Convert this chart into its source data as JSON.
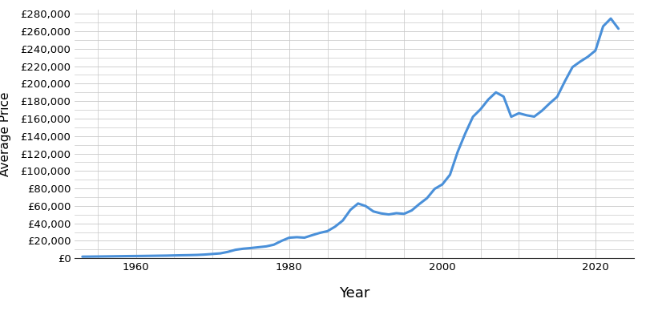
{
  "title": "",
  "xlabel": "Year",
  "ylabel": "Average Price",
  "line_color": "#4a90d9",
  "line_width": 2.2,
  "background_color": "#ffffff",
  "grid_color": "#c8c8c8",
  "ylim": [
    0,
    285000
  ],
  "ytick_step": 20000,
  "xlim_min": 1952,
  "xlim_max": 2025,
  "xticks": [
    1960,
    1980,
    2000,
    2020
  ],
  "years": [
    1953,
    1954,
    1955,
    1956,
    1957,
    1958,
    1959,
    1960,
    1961,
    1962,
    1963,
    1964,
    1965,
    1966,
    1967,
    1968,
    1969,
    1970,
    1971,
    1972,
    1973,
    1974,
    1975,
    1976,
    1977,
    1978,
    1979,
    1980,
    1981,
    1982,
    1983,
    1984,
    1985,
    1986,
    1987,
    1988,
    1989,
    1990,
    1991,
    1992,
    1993,
    1994,
    1995,
    1996,
    1997,
    1998,
    1999,
    2000,
    2001,
    2002,
    2003,
    2004,
    2005,
    2006,
    2007,
    2008,
    2009,
    2010,
    2011,
    2012,
    2013,
    2014,
    2015,
    2016,
    2017,
    2018,
    2019,
    2020,
    2021,
    2022,
    2023
  ],
  "prices": [
    1891,
    1970,
    2071,
    2184,
    2302,
    2420,
    2535,
    2609,
    2707,
    2839,
    2966,
    3090,
    3302,
    3497,
    3650,
    3880,
    4312,
    4975,
    5632,
    7374,
    9767,
    10990,
    11787,
    12704,
    13650,
    15594,
    19925,
    23596,
    24188,
    23644,
    26471,
    29106,
    31103,
    36276,
    43244,
    55491,
    62782,
    59785,
    53683,
    51437,
    50193,
    51671,
    50930,
    54797,
    62162,
    68858,
    79532,
    84620,
    95650,
    121769,
    143068,
    162080,
    170764,
    181828,
    190032,
    185240,
    162085,
    166159,
    163822,
    162262,
    168933,
    177302,
    185010,
    202654,
    218964,
    225234,
    230776,
    237963,
    265668,
    274615,
    262954
  ],
  "xlabel_fontsize": 13,
  "ylabel_fontsize": 11,
  "tick_labelsize": 9.5
}
